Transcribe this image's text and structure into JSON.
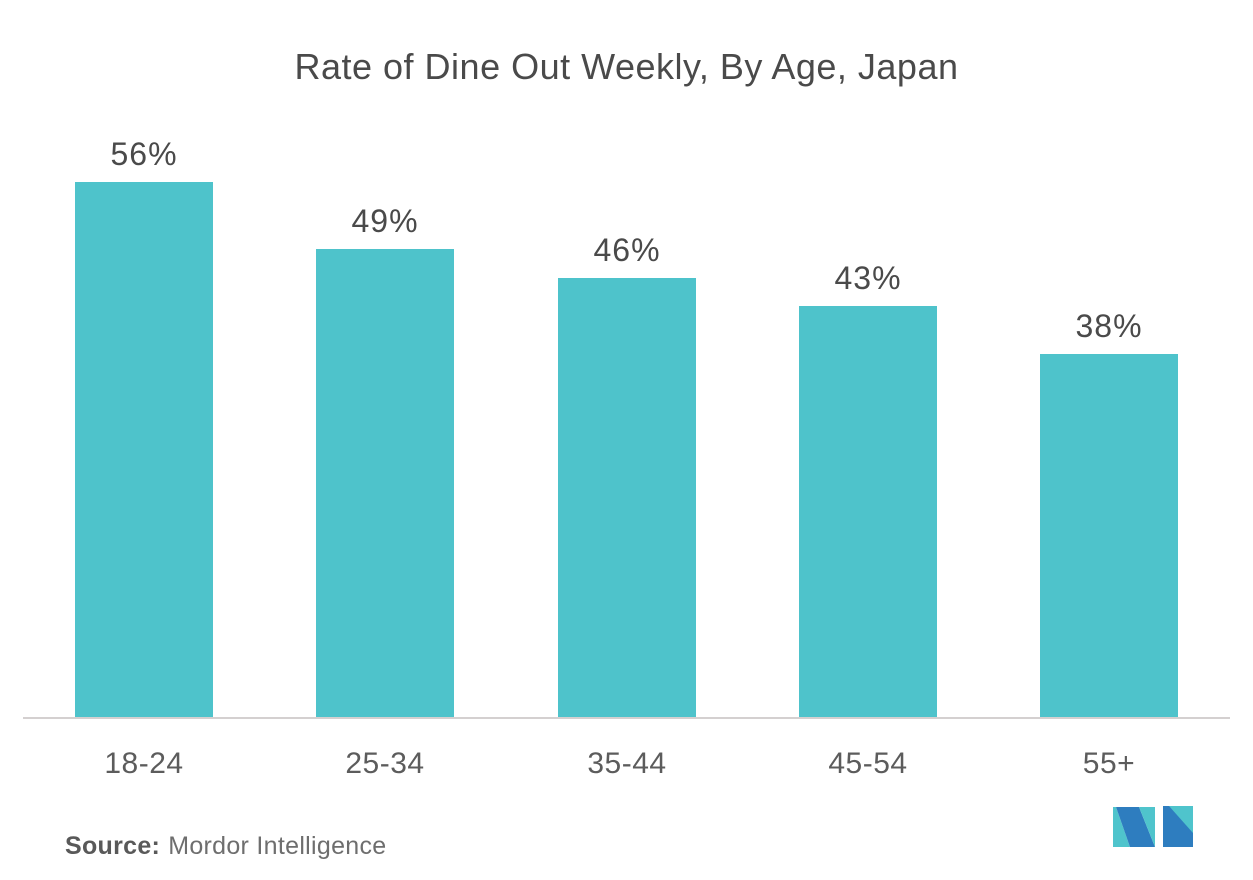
{
  "title": "Rate of Dine Out Weekly, By Age, Japan",
  "source": {
    "label": "Source:",
    "name": "Mordor Intelligence"
  },
  "logo": {
    "name": "mordor-intelligence-logo",
    "blue": "#2e7dbf",
    "teal": "#4fc4cc"
  },
  "colors": {
    "bar": "#4ec3cb",
    "title_text": "#4a4a4a",
    "value_label_text": "#4a4a4a",
    "category_label_text": "#5c5c5c",
    "axis_line": "#d4d0d0",
    "source_text": "#6e6e6e",
    "background": "#ffffff"
  },
  "chart_data": {
    "type": "bar",
    "title": "Rate of Dine Out Weekly, By Age, Japan",
    "categories": [
      "18-24",
      "25-34",
      "35-44",
      "45-54",
      "55+"
    ],
    "values": [
      56,
      49,
      46,
      43,
      38
    ],
    "value_labels": [
      "56%",
      "49%",
      "46%",
      "43%",
      "38%"
    ],
    "xlabel": "",
    "ylabel": "",
    "ylim": [
      0,
      60
    ],
    "grid": false,
    "legend": false,
    "bar_color": "#4ec3cb",
    "orientation": "vertical",
    "data_labels_position": "above-bars"
  }
}
